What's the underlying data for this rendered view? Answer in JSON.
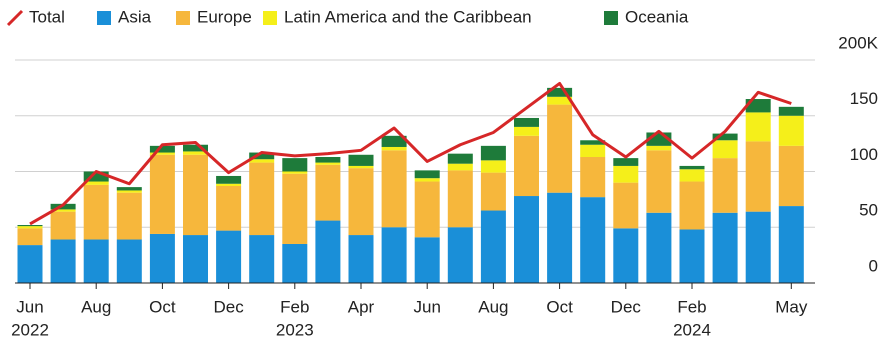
{
  "chart_data": {
    "type": "bar",
    "stacked": true,
    "categories": [
      "Jun",
      null,
      "Aug",
      null,
      "Oct",
      null,
      "Dec",
      null,
      "Feb",
      null,
      "Apr",
      null,
      "Jun",
      null,
      "Aug",
      null,
      "Oct",
      null,
      "Dec",
      null,
      "Feb",
      null,
      null,
      "May"
    ],
    "category_years": [
      "2022",
      null,
      null,
      null,
      null,
      null,
      null,
      null,
      "2023",
      null,
      null,
      null,
      null,
      null,
      null,
      null,
      null,
      null,
      null,
      null,
      "2024",
      null,
      null,
      null
    ],
    "series": [
      {
        "name": "Total",
        "type": "line",
        "color": "#d62728",
        "values": [
          53,
          70,
          100,
          89,
          124,
          126,
          99,
          117,
          114,
          116,
          119,
          139,
          109,
          124,
          135,
          157,
          179,
          133,
          113,
          136,
          112,
          136,
          171,
          161
        ]
      },
      {
        "name": "Asia",
        "color": "#1a8fd8",
        "values": [
          34,
          39,
          39,
          39,
          44,
          43,
          47,
          43,
          35,
          56,
          43,
          50,
          41,
          50,
          65,
          78,
          81,
          77,
          49,
          63,
          48,
          63,
          64,
          69
        ]
      },
      {
        "name": "Europe",
        "color": "#f6b73c",
        "values": [
          15,
          25,
          49,
          42,
          71,
          72,
          40,
          65,
          63,
          50,
          60,
          69,
          50,
          51,
          34,
          54,
          79,
          36,
          41,
          56,
          43,
          49,
          63,
          54
        ]
      },
      {
        "name": "Latin America and the Caribbean",
        "color": "#f5ef1a",
        "values": [
          2,
          2,
          3,
          2,
          2,
          3,
          2,
          3,
          2,
          2,
          2,
          3,
          3,
          6,
          11,
          8,
          7,
          11,
          15,
          4,
          11,
          16,
          26,
          27
        ]
      },
      {
        "name": "Oceania",
        "color": "#1e7b3a",
        "values": [
          1,
          5,
          9,
          3,
          6,
          6,
          7,
          6,
          12,
          5,
          10,
          10,
          7,
          9,
          13,
          8,
          8,
          4,
          7,
          12,
          3,
          6,
          12,
          8
        ]
      }
    ],
    "ylim": [
      0,
      200
    ],
    "yticks": [
      0,
      50,
      100,
      150,
      {
        "value": 200,
        "label": "200K"
      }
    ],
    "y_axis_side": "right",
    "grid": true,
    "legend": "top"
  }
}
